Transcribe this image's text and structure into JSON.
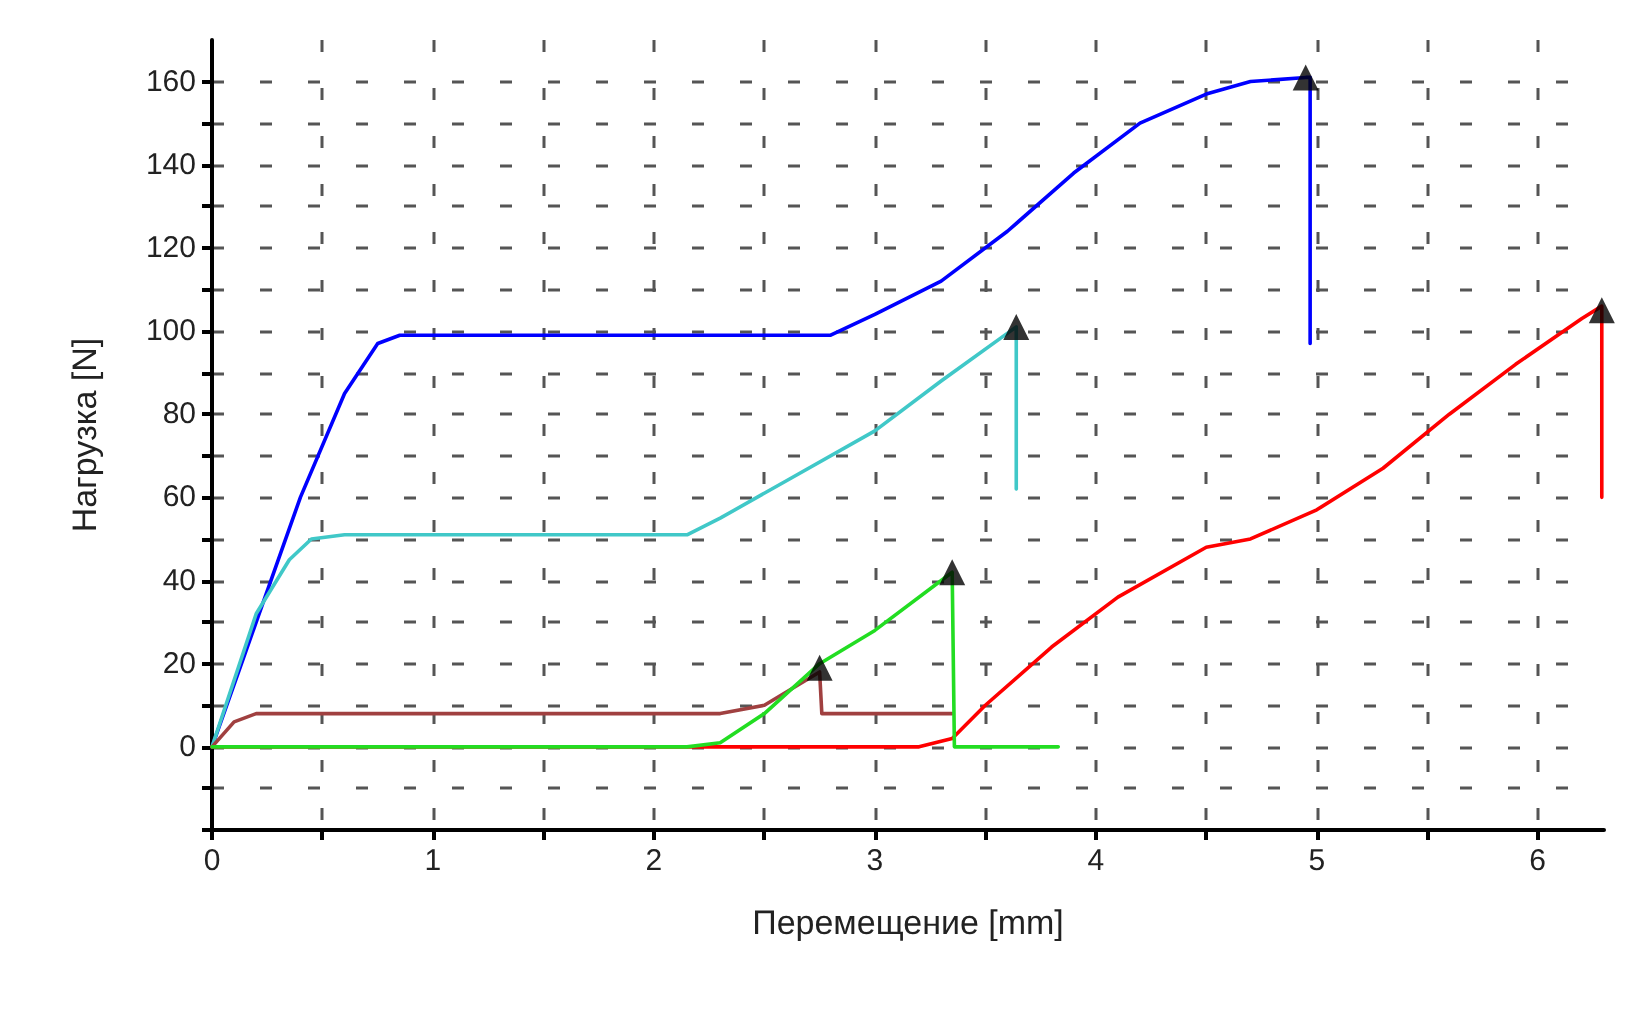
{
  "chart_data": {
    "type": "line",
    "xlabel": "Перемещение [mm]",
    "ylabel": "Нагрузка [N]",
    "xlim": [
      0,
      6.3
    ],
    "xticks": [
      0,
      1,
      2,
      3,
      4,
      5,
      6
    ],
    "ylim": [
      -20,
      170
    ],
    "yticks": [
      {
        "value": -20,
        "label": null
      },
      0,
      20,
      40,
      60,
      80,
      100,
      120,
      140,
      160
    ],
    "grid": true,
    "marker": "none",
    "line_style": "solid",
    "series": [
      {
        "color": "#0000ff",
        "x": [
          0,
          0.2,
          0.4,
          0.6,
          0.75,
          0.85,
          2.8,
          3.0,
          3.3,
          3.6,
          3.9,
          4.2,
          4.5,
          4.7,
          4.95,
          4.97,
          4.97
        ],
        "values": [
          0,
          30,
          60,
          85,
          97,
          99,
          99,
          104,
          112,
          124,
          138,
          150,
          157,
          160,
          161,
          161,
          97
        ]
      },
      {
        "color": "#40c8c8",
        "x": [
          0,
          0.2,
          0.35,
          0.45,
          0.6,
          2.15,
          2.3,
          2.6,
          3.0,
          3.3,
          3.64,
          3.64
        ],
        "values": [
          0,
          32,
          45,
          50,
          51,
          51,
          55,
          64,
          76,
          88,
          101,
          62
        ]
      },
      {
        "color": "#a04040",
        "x": [
          0,
          0.1,
          0.2,
          2.3,
          2.5,
          2.75,
          2.76,
          3.35
        ],
        "values": [
          0,
          6,
          8,
          8,
          10,
          18,
          8,
          8
        ]
      },
      {
        "color": "#ff0000",
        "x": [
          0,
          3.2,
          3.35,
          3.5,
          3.8,
          4.1,
          4.5,
          4.7,
          5.0,
          5.3,
          5.6,
          5.9,
          6.2,
          6.29,
          6.29
        ],
        "values": [
          0,
          0,
          2,
          10,
          24,
          36,
          48,
          50,
          57,
          67,
          80,
          92,
          103,
          106,
          60
        ]
      },
      {
        "color": "#22dd22",
        "x": [
          0,
          2.15,
          2.3,
          2.5,
          2.75,
          3.0,
          3.35,
          3.36,
          3.83
        ],
        "values": [
          0,
          0,
          1,
          8,
          20,
          28,
          42,
          0,
          0
        ]
      },
      {
        "type": "scatter",
        "marker": "triangle",
        "color": "#000000",
        "x": [
          4.95,
          3.64,
          3.35,
          2.75,
          6.29
        ],
        "values": [
          161,
          101,
          42,
          19,
          105
        ]
      }
    ]
  }
}
